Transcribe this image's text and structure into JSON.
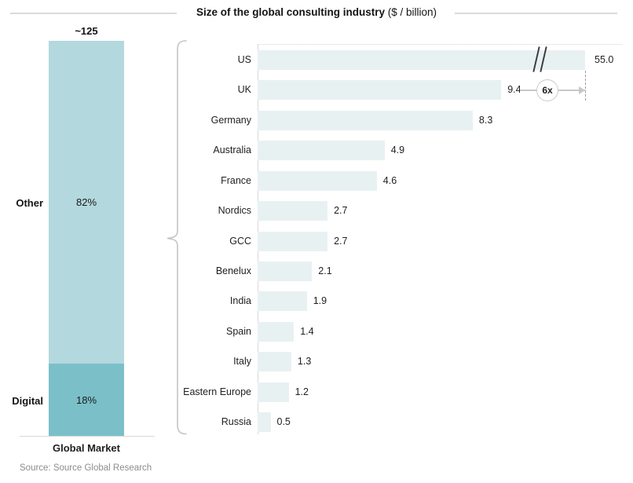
{
  "title": {
    "main": "Size of the global consulting industry",
    "unit": " ($ / billion)"
  },
  "source_note": "Source: Source Global Research",
  "left_chart": {
    "total_label": "~125",
    "x_axis_label": "Global Market",
    "segments": [
      {
        "label": "Other",
        "value_label": "82%",
        "color": "#b3d8de"
      },
      {
        "label": "Digital",
        "value_label": "18%",
        "color": "#7bc0c9"
      }
    ]
  },
  "right_chart": {
    "bar_color": "#e8f1f2",
    "annotation": {
      "multiplier_label": "6x"
    },
    "us_axis_break": true,
    "rows": [
      {
        "label": "US",
        "value": 55.0,
        "value_label": "55.0"
      },
      {
        "label": "UK",
        "value": 9.4,
        "value_label": "9.4"
      },
      {
        "label": "Germany",
        "value": 8.3,
        "value_label": "8.3"
      },
      {
        "label": "Australia",
        "value": 4.9,
        "value_label": "4.9"
      },
      {
        "label": "France",
        "value": 4.6,
        "value_label": "4.6"
      },
      {
        "label": "Nordics",
        "value": 2.7,
        "value_label": "2.7"
      },
      {
        "label": "GCC",
        "value": 2.7,
        "value_label": "2.7"
      },
      {
        "label": "Benelux",
        "value": 2.1,
        "value_label": "2.1"
      },
      {
        "label": "India",
        "value": 1.9,
        "value_label": "1.9"
      },
      {
        "label": "Spain",
        "value": 1.4,
        "value_label": "1.4"
      },
      {
        "label": "Italy",
        "value": 1.3,
        "value_label": "1.3"
      },
      {
        "label": "Eastern Europe",
        "value": 1.2,
        "value_label": "1.2"
      },
      {
        "label": "Russia",
        "value": 0.5,
        "value_label": "0.5"
      }
    ]
  },
  "chart_data": [
    {
      "type": "bar",
      "subtype": "stacked-vertical",
      "title": "Size of the global consulting industry ($ / billion)",
      "categories": [
        "Global Market"
      ],
      "series": [
        {
          "name": "Other",
          "values": [
            82
          ],
          "unit": "%",
          "color": "#b3d8de"
        },
        {
          "name": "Digital",
          "values": [
            18
          ],
          "unit": "%",
          "color": "#7bc0c9"
        }
      ],
      "total_label": "~125",
      "annotations": [
        "Total global market ~$125bn; Digital 18%, Other 82%"
      ]
    },
    {
      "type": "bar",
      "subtype": "horizontal",
      "title": "Size of the global consulting industry ($ / billion)",
      "categories": [
        "US",
        "UK",
        "Germany",
        "Australia",
        "France",
        "Nordics",
        "GCC",
        "Benelux",
        "India",
        "Spain",
        "Italy",
        "Eastern Europe",
        "Russia"
      ],
      "values": [
        55.0,
        9.4,
        8.3,
        4.9,
        4.6,
        2.7,
        2.7,
        2.1,
        1.9,
        1.4,
        1.3,
        1.2,
        0.5
      ],
      "xlabel": "$ / billion",
      "annotations": [
        "US bar drawn with axis break (//)",
        "6x marker: US is ~6x the UK market"
      ],
      "legend": false,
      "grid": false
    }
  ]
}
